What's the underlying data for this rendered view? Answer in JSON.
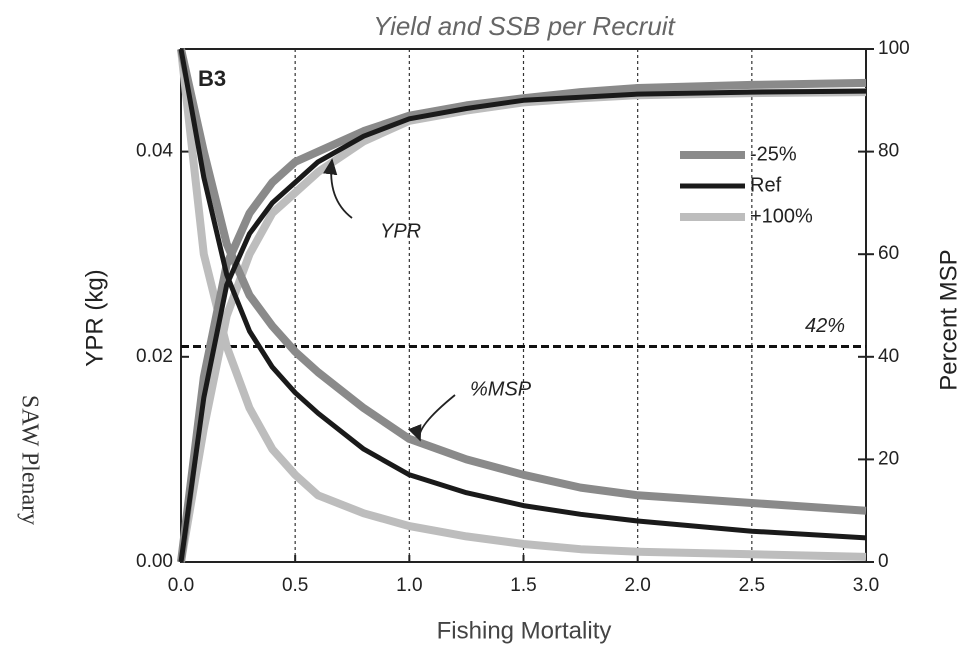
{
  "chart_data": {
    "type": "line",
    "title": "Yield and SSB per Recruit",
    "panel_label": "B3",
    "side_text": "SAW Plenary",
    "x_label": "Fishing Mortality",
    "y_label": "YPR (kg)",
    "y2_label": "Percent MSP",
    "x": [
      0,
      0.1,
      0.2,
      0.3,
      0.4,
      0.5,
      0.6,
      0.8,
      1.0,
      1.25,
      1.5,
      1.75,
      2.0,
      2.5,
      3.0
    ],
    "xlim": [
      0,
      3
    ],
    "xticks": [
      {
        "value": 0,
        "label": "0.0"
      },
      0.5,
      {
        "value": 1,
        "label": "1.0"
      },
      1.5,
      {
        "value": 2,
        "label": "2.0"
      },
      2.5,
      {
        "value": 3,
        "label": "3.0"
      }
    ],
    "ylim": [
      0,
      0.05
    ],
    "yticks": [
      {
        "value": 0,
        "label": "0.00"
      },
      {
        "value": 0.02,
        "label": "0.02"
      },
      {
        "value": 0.04,
        "label": "0.04"
      }
    ],
    "y2lim": [
      0,
      100
    ],
    "y2ticks": [
      0,
      20,
      40,
      60,
      80,
      100
    ],
    "x_grid": true,
    "reference_line": {
      "value": 42,
      "label": "42%",
      "axis": "y2"
    },
    "annotations": [
      "YPR",
      "%MSP"
    ],
    "legend": "upper right",
    "series": [
      {
        "name": "-25%",
        "color": "#8a8a8a",
        "values": [
          0,
          0.018,
          0.029,
          0.034,
          0.037,
          0.039,
          0.04,
          0.042,
          0.0435,
          0.0445,
          0.0452,
          0.0458,
          0.0462,
          0.0465,
          0.0467
        ]
      },
      {
        "name": "Ref",
        "color": "#1a1a1a",
        "values": [
          0,
          0.016,
          0.027,
          0.032,
          0.035,
          0.037,
          0.039,
          0.0415,
          0.0432,
          0.0442,
          0.045,
          0.0453,
          0.0456,
          0.0458,
          0.0459
        ]
      },
      {
        "name": "+100%",
        "color": "#bdbdbd",
        "values": [
          0,
          0.013,
          0.024,
          0.03,
          0.034,
          0.036,
          0.038,
          0.041,
          0.043,
          0.044,
          0.0448,
          0.0452,
          0.0455,
          0.0457,
          0.0458
        ]
      },
      {
        "name": "-25%",
        "color": "#8a8a8a",
        "axis": "y2",
        "values": [
          100,
          80,
          62,
          52,
          46,
          41,
          37,
          30,
          24,
          20,
          17,
          14.5,
          13,
          11.5,
          10
        ]
      },
      {
        "name": "Ref",
        "color": "#1a1a1a",
        "axis": "y2",
        "values": [
          100,
          75,
          56,
          45,
          38,
          33,
          29,
          22,
          17,
          13.5,
          11,
          9.3,
          8,
          6,
          4.7
        ]
      },
      {
        "name": "+100%",
        "color": "#bdbdbd",
        "axis": "y2",
        "values": [
          100,
          60,
          42,
          30,
          22,
          17,
          13,
          9.5,
          7,
          5,
          3.5,
          2.5,
          2,
          1.5,
          1
        ]
      }
    ]
  }
}
